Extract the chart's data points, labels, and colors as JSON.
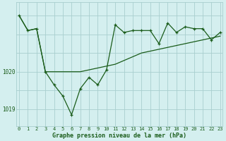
{
  "line1_x": [
    0,
    1,
    2,
    3,
    4,
    5,
    6,
    7,
    8,
    9,
    10,
    11,
    12,
    13,
    14,
    15,
    16,
    17,
    18,
    19,
    20,
    21,
    22,
    23
  ],
  "line1_y": [
    1021.5,
    1021.1,
    1021.15,
    1020.0,
    1019.65,
    1019.35,
    1018.85,
    1019.55,
    1019.85,
    1019.65,
    1020.05,
    1021.25,
    1021.05,
    1021.1,
    1021.1,
    1021.1,
    1020.75,
    1021.3,
    1021.05,
    1021.2,
    1021.15,
    1021.15,
    1020.85,
    1021.05
  ],
  "line2_x": [
    0,
    1,
    2,
    3,
    4,
    5,
    6,
    7,
    8,
    9,
    10,
    11,
    12,
    13,
    14,
    15,
    16,
    17,
    18,
    19,
    20,
    21,
    22,
    23
  ],
  "line2_y": [
    1021.5,
    1021.1,
    1021.15,
    1020.0,
    1020.0,
    1020.0,
    1020.0,
    1020.0,
    1020.05,
    1020.1,
    1020.15,
    1020.2,
    1020.3,
    1020.4,
    1020.5,
    1020.55,
    1020.6,
    1020.65,
    1020.7,
    1020.75,
    1020.8,
    1020.85,
    1020.9,
    1020.95
  ],
  "line_color": "#1a5c1a",
  "bg_color": "#d4efef",
  "grid_color": "#a8cece",
  "xlabel": "Graphe pression niveau de la mer (hPa)",
  "ylim_min": 1018.55,
  "ylim_max": 1021.85,
  "yticks": [
    1019,
    1020
  ],
  "xticks": [
    0,
    1,
    2,
    3,
    4,
    5,
    6,
    7,
    8,
    9,
    10,
    11,
    12,
    13,
    14,
    15,
    16,
    17,
    18,
    19,
    20,
    21,
    22,
    23
  ]
}
